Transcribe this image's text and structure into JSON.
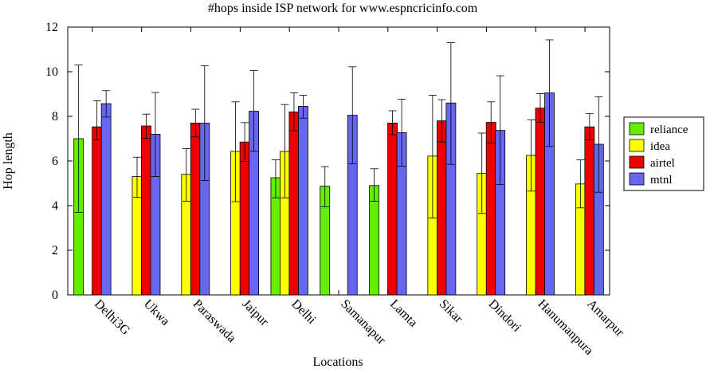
{
  "chart_data": {
    "type": "bar",
    "title": "#hops inside ISP network for www.espncricinfo.com",
    "xlabel": "Locations",
    "ylabel": "Hop length",
    "ylim": [
      0,
      12
    ],
    "yticks": [
      0,
      2,
      4,
      6,
      8,
      10,
      12
    ],
    "legend_position": "right",
    "categories": [
      "Delhi3G",
      "Ukwa",
      "Paraswada",
      "Jaipur",
      "Delhi",
      "Samanapur",
      "Lamta",
      "Sikar",
      "Dindori",
      "Hanumanpura",
      "Amarpur"
    ],
    "series": [
      {
        "name": "reliance",
        "color": "#66ee00",
        "values": [
          7.0,
          null,
          null,
          null,
          5.25,
          4.87,
          4.9,
          null,
          null,
          null,
          null
        ],
        "error_low": [
          3.7,
          null,
          null,
          null,
          4.35,
          3.95,
          4.2,
          null,
          null,
          null,
          null
        ],
        "error_high": [
          10.3,
          null,
          null,
          null,
          6.05,
          5.75,
          5.65,
          null,
          null,
          null,
          null
        ]
      },
      {
        "name": "idea",
        "color": "#ffff00",
        "values": [
          null,
          5.3,
          5.4,
          6.43,
          6.43,
          null,
          null,
          6.22,
          5.44,
          6.25,
          4.97
        ],
        "error_low": [
          null,
          4.37,
          4.2,
          4.18,
          4.35,
          null,
          null,
          3.45,
          3.65,
          4.65,
          3.9
        ],
        "error_high": [
          null,
          6.17,
          6.55,
          8.65,
          8.53,
          null,
          null,
          8.95,
          7.25,
          7.85,
          6.05
        ]
      },
      {
        "name": "airtel",
        "color": "#ee0000",
        "values": [
          7.53,
          7.57,
          7.7,
          6.85,
          8.2,
          null,
          7.7,
          7.8,
          7.73,
          8.37,
          7.53
        ],
        "error_low": [
          6.95,
          7.02,
          7.08,
          5.98,
          7.35,
          null,
          7.18,
          6.85,
          6.8,
          7.73,
          6.95
        ],
        "error_high": [
          8.7,
          8.1,
          8.32,
          7.72,
          9.05,
          null,
          8.25,
          8.75,
          8.65,
          9.02,
          8.12
        ]
      },
      {
        "name": "mtnl",
        "color": "#6666ee",
        "values": [
          8.57,
          7.2,
          7.7,
          8.23,
          8.45,
          8.05,
          7.27,
          8.6,
          7.37,
          9.05,
          6.75
        ],
        "error_low": [
          7.97,
          5.3,
          5.12,
          6.43,
          7.92,
          5.88,
          5.77,
          5.85,
          4.95,
          6.65,
          4.6
        ],
        "error_high": [
          9.15,
          9.07,
          10.27,
          10.05,
          8.95,
          10.22,
          8.77,
          11.3,
          9.82,
          11.43,
          8.88
        ]
      }
    ]
  }
}
